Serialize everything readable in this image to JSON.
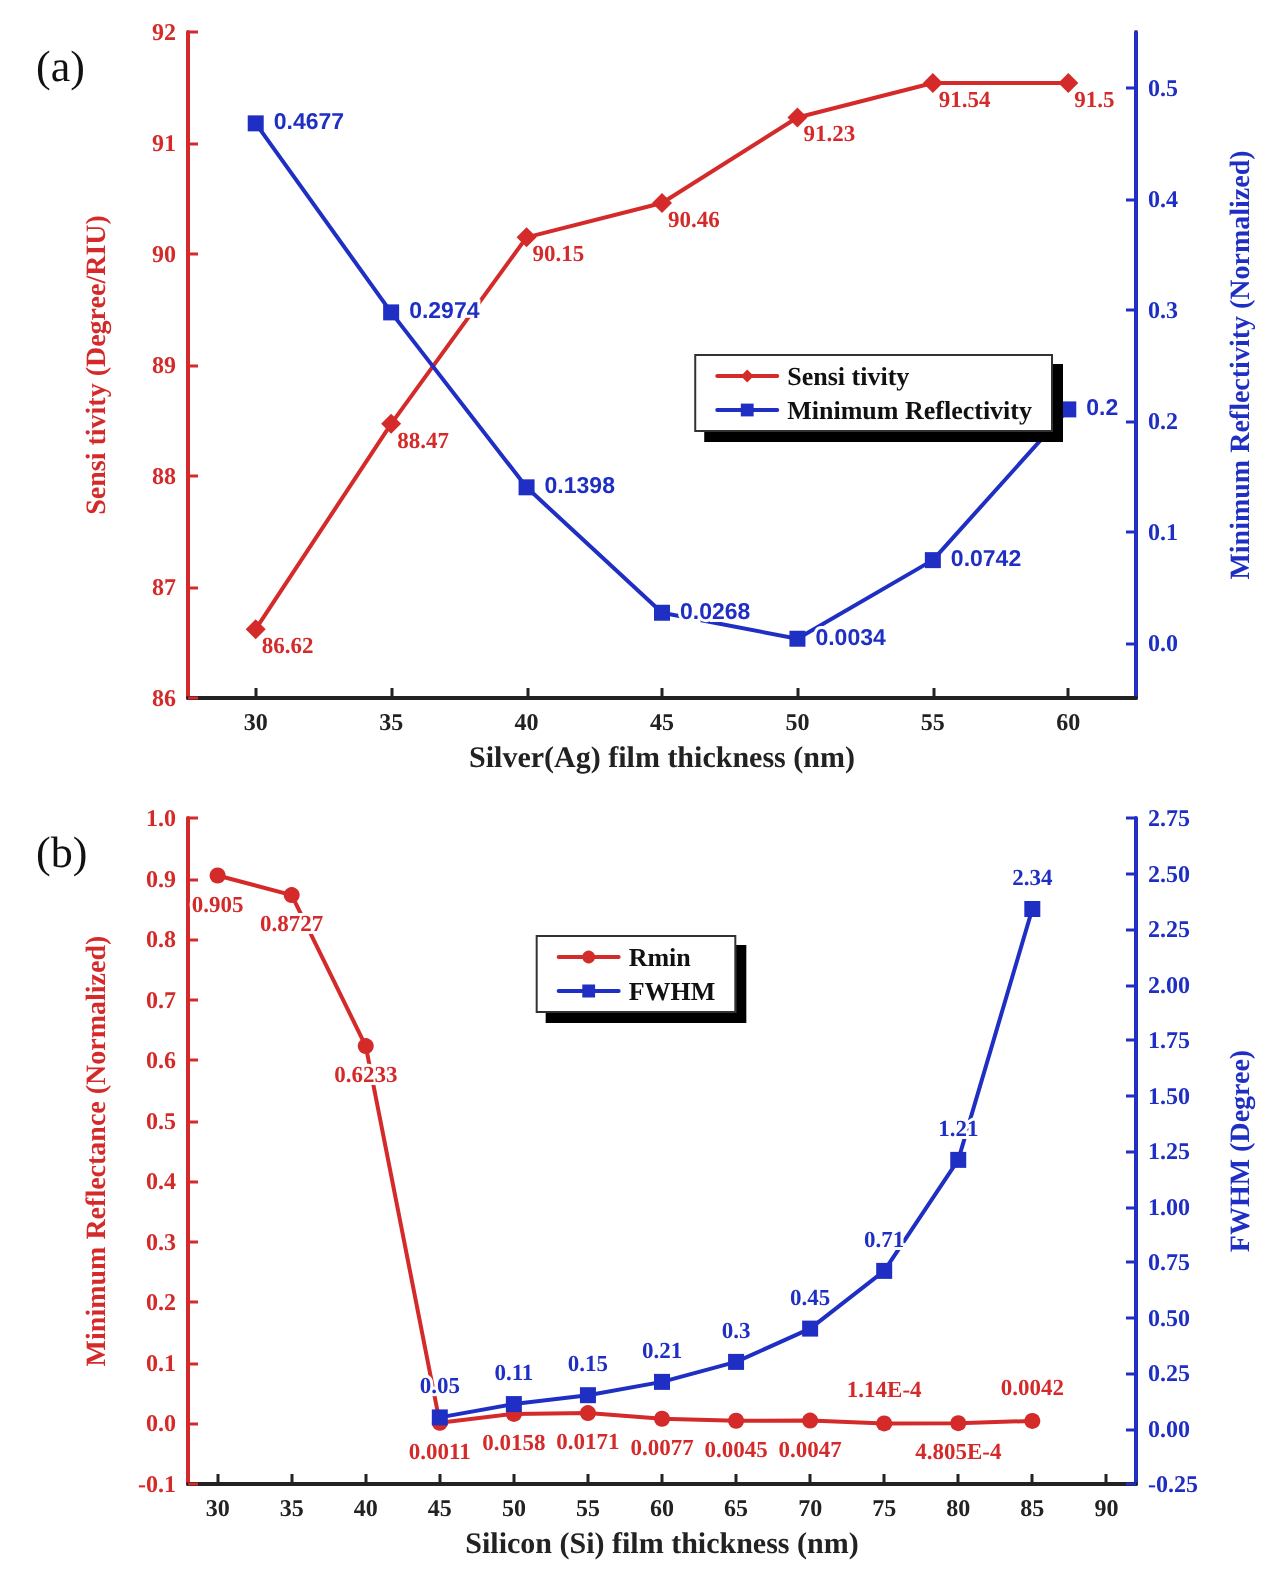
{
  "chart_data": [
    {
      "type": "line",
      "annotations": [
        "(a)"
      ],
      "xlabel": "Silver(Ag) film thickness (nm)",
      "ylabel": "Sensi tivity (Degree/RIU)",
      "y2label": "Minimum Reflectivity (Normalized)",
      "x": [
        30,
        35,
        40,
        45,
        50,
        55,
        60
      ],
      "xlim": [
        27.5,
        62.5
      ],
      "xticks": [
        30,
        35,
        40,
        45,
        50,
        55,
        60
      ],
      "ylim": [
        86,
        92
      ],
      "yticks": [
        86,
        87,
        88,
        89,
        90,
        91,
        92
      ],
      "y2lim": [
        -0.05,
        0.55
      ],
      "y2ticks": [
        {
          "value": 0,
          "label": "0.0"
        },
        0.1,
        0.2,
        0.3,
        0.4,
        0.5
      ],
      "grid": false,
      "legend": "right",
      "line_style": "solid",
      "series": [
        {
          "name": "Sensi tivity",
          "color": "#d42a2a",
          "marker": "diamond",
          "values": [
            86.62,
            88.47,
            90.15,
            90.46,
            91.23,
            91.54,
            91.54
          ],
          "value_labels": [
            "86.62",
            "88.47",
            "90.15",
            "90.46",
            "91.23",
            "91.54",
            "91.5"
          ]
        },
        {
          "name": "Minimum Reflectivity",
          "color": "#1f2fc4",
          "marker": "square",
          "axis": "y2",
          "values": [
            0.4677,
            0.2974,
            0.1398,
            0.0268,
            0.0034,
            0.0742,
            0.21
          ],
          "value_labels": [
            "0.4677",
            "0.2974",
            "0.1398",
            "0.0268",
            "0.0034",
            "0.0742",
            "0.2"
          ]
        }
      ]
    },
    {
      "type": "line",
      "annotations": [
        "(b)"
      ],
      "xlabel": "Silicon (Si) film thickness (nm)",
      "ylabel": "Minimum Reflectance (Normalized)",
      "y2label": "FWHM (Degree)",
      "x": [
        30,
        35,
        40,
        45,
        50,
        55,
        60,
        65,
        70,
        75,
        80,
        85
      ],
      "xlim": [
        28,
        92
      ],
      "xticks": [
        30,
        35,
        40,
        45,
        50,
        55,
        60,
        65,
        70,
        75,
        80,
        85,
        90
      ],
      "ylim": [
        -0.1,
        1.0
      ],
      "yticks": [
        {
          "value": -0.1,
          "label": "-0.1"
        },
        {
          "value": 0,
          "label": "0.0"
        },
        0.1,
        0.2,
        0.3,
        0.4,
        0.5,
        0.6,
        0.7,
        0.8,
        0.9,
        {
          "value": 1,
          "label": "1.0"
        }
      ],
      "y2lim": [
        -0.25,
        2.75
      ],
      "y2ticks": [
        {
          "value": -0.25,
          "label": "-0.25"
        },
        {
          "value": 0,
          "label": "0.00"
        },
        0.25,
        {
          "value": 0.5,
          "label": "0.50"
        },
        0.75,
        {
          "value": 1,
          "label": "1.00"
        },
        1.25,
        {
          "value": 1.5,
          "label": "1.50"
        },
        1.75,
        {
          "value": 2,
          "label": "2.00"
        },
        2.25,
        {
          "value": 2.5,
          "label": "2.50"
        },
        2.75
      ],
      "grid": false,
      "legend": "top",
      "line_style": "solid",
      "series": [
        {
          "name": "Rmin",
          "color": "#d42a2a",
          "marker": "circle",
          "values": [
            0.905,
            0.8727,
            0.6233,
            0.0011,
            0.0158,
            0.0171,
            0.0077,
            0.0045,
            0.0047,
            0.000114,
            0.0004805,
            0.0042
          ],
          "value_labels": [
            "0.905",
            "0.8727",
            "0.6233",
            "0.0011",
            "0.0158",
            "0.0171",
            "0.0077",
            "0.0045",
            "0.0047",
            "1.14E-4",
            "4.805E-4",
            "0.0042"
          ]
        },
        {
          "name": "FWHM",
          "color": "#1f2fc4",
          "marker": "square",
          "axis": "y2",
          "x": [
            45,
            50,
            55,
            60,
            65,
            70,
            75,
            80,
            85
          ],
          "values": [
            0.05,
            0.11,
            0.15,
            0.21,
            0.3,
            0.45,
            0.71,
            1.21,
            2.34
          ],
          "value_labels": [
            "0.05",
            "0.11",
            "0.15",
            "0.21",
            "0.3",
            "0.45",
            "0.71",
            "1.21",
            "2.34"
          ]
        }
      ]
    }
  ]
}
